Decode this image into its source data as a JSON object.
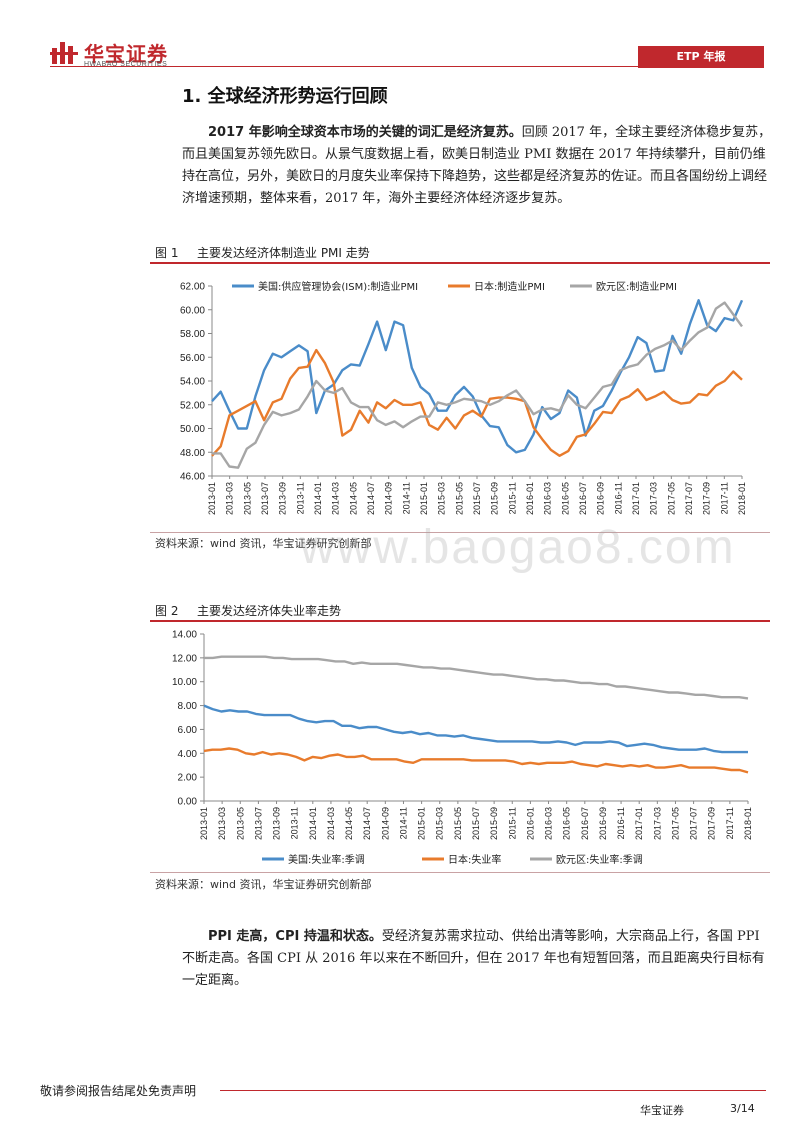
{
  "header": {
    "logo_cn": "华宝证券",
    "logo_en": "HWABAO SECURITIES",
    "report_type": "ETP 年报"
  },
  "section": {
    "title": "1. 全球经济形势运行回顾"
  },
  "paragraph1": {
    "lead": "2017 年影响全球资本市场的关键的词汇是经济复苏。",
    "body": "回顾 2017 年，全球主要经济体稳步复苏，而且美国复苏领先欧日。从景气度数据上看，欧美日制造业 PMI 数据在 2017 年持续攀升，目前仍维持在高位，另外，美欧日的月度失业率保持下降趋势，这些都是经济复苏的佐证。而且各国纷纷上调经济增速预期，整体来看，2017 年，海外主要经济体经济逐步复苏。"
  },
  "figure1": {
    "number": "图 1",
    "title": "主要发达经济体制造业 PMI 走势",
    "source": "资料来源：wind 资讯，华宝证券研究创新部"
  },
  "figure2": {
    "number": "图 2",
    "title": "主要发达经济体失业率走势",
    "source": "资料来源：wind 资讯，华宝证券研究创新部"
  },
  "paragraph2": {
    "lead": "PPI 走高，CPI 持温和状态。",
    "body": "受经济复苏需求拉动、供给出清等影响，大宗商品上行，各国 PPI 不断走高。各国 CPI 从 2016 年以来在不断回升，但在 2017 年也有短暂回落，而且距离央行目标有一定距离。"
  },
  "watermark": "www.baogao8.com",
  "footer": {
    "disclaimer": "敬请参阅报告结尾处免责声明",
    "company": "华宝证券",
    "page": "3/14"
  },
  "colors": {
    "brand_red": "#c0282d",
    "us": "#4a8cc9",
    "jp": "#e87b2c",
    "eu": "#a6a6a6"
  },
  "chart_data": [
    {
      "type": "line",
      "legend_position": "top",
      "ylim": [
        46,
        62
      ],
      "yticks": [
        "46.00",
        "48.00",
        "50.00",
        "52.00",
        "54.00",
        "56.00",
        "58.00",
        "60.00",
        "62.00"
      ],
      "xticks": [
        "2013-01",
        "2013-03",
        "2013-05",
        "2013-07",
        "2013-09",
        "2013-11",
        "2014-01",
        "2014-03",
        "2014-05",
        "2014-07",
        "2014-09",
        "2014-11",
        "2015-01",
        "2015-03",
        "2015-05",
        "2015-07",
        "2015-09",
        "2015-11",
        "2016-01",
        "2016-03",
        "2016-05",
        "2016-07",
        "2016-09",
        "2016-11",
        "2017-01",
        "2017-03",
        "2017-05",
        "2017-07",
        "2017-09",
        "2017-11",
        "2018-01"
      ],
      "series": [
        {
          "name": "美国:供应管理协会(ISM):制造业PMI",
          "color": "#4a8cc9",
          "values": [
            52.3,
            53.1,
            51.5,
            50.0,
            50.0,
            52.7,
            54.9,
            56.3,
            56.0,
            56.5,
            57.0,
            56.5,
            51.3,
            53.2,
            53.7,
            54.9,
            55.4,
            55.3,
            57.1,
            59.0,
            56.6,
            59.0,
            58.7,
            55.1,
            53.5,
            52.9,
            51.5,
            51.5,
            52.8,
            53.5,
            52.7,
            51.1,
            50.2,
            50.1,
            48.6,
            48.0,
            48.2,
            49.5,
            51.8,
            50.8,
            51.3,
            53.2,
            52.6,
            49.4,
            51.5,
            51.9,
            53.2,
            54.7,
            56.0,
            57.7,
            57.2,
            54.8,
            54.9,
            57.8,
            56.3,
            58.8,
            60.8,
            58.7,
            58.2,
            59.3,
            59.1,
            60.8
          ]
        },
        {
          "name": "日本:制造业PMI",
          "color": "#e87b2c",
          "values": [
            47.7,
            48.5,
            51.1,
            51.5,
            51.9,
            52.3,
            50.7,
            52.2,
            52.5,
            54.2,
            55.1,
            55.2,
            56.6,
            55.5,
            53.9,
            49.4,
            49.9,
            51.5,
            50.5,
            52.2,
            51.7,
            52.4,
            52.0,
            52.0,
            52.2,
            50.3,
            49.9,
            50.9,
            50.0,
            51.1,
            51.5,
            51.0,
            52.5,
            52.6,
            52.6,
            52.5,
            52.3,
            50.1,
            49.1,
            48.2,
            47.7,
            48.1,
            49.3,
            49.5,
            50.4,
            51.4,
            51.3,
            52.4,
            52.7,
            53.3,
            52.4,
            52.7,
            53.1,
            52.4,
            52.1,
            52.2,
            52.9,
            52.8,
            53.6,
            54.0,
            54.8,
            54.1
          ]
        },
        {
          "name": "欧元区:制造业PMI",
          "color": "#a6a6a6",
          "values": [
            47.9,
            47.9,
            46.8,
            46.7,
            48.3,
            48.8,
            50.3,
            51.4,
            51.1,
            51.3,
            51.6,
            52.7,
            54.0,
            53.2,
            53.0,
            53.4,
            52.2,
            51.8,
            51.8,
            50.7,
            50.3,
            50.6,
            50.1,
            50.6,
            51.0,
            51.0,
            52.2,
            52.0,
            52.2,
            52.5,
            52.4,
            52.3,
            52.0,
            52.3,
            52.8,
            53.2,
            52.3,
            51.2,
            51.6,
            51.7,
            51.5,
            52.8,
            52.0,
            51.7,
            52.6,
            53.5,
            53.7,
            54.9,
            55.2,
            55.4,
            56.2,
            56.7,
            57.0,
            57.4,
            56.6,
            57.4,
            58.1,
            58.5,
            60.1,
            60.6,
            59.6,
            58.6
          ]
        }
      ]
    },
    {
      "type": "line",
      "legend_position": "bottom",
      "ylim": [
        0,
        14
      ],
      "yticks": [
        "0.00",
        "2.00",
        "4.00",
        "6.00",
        "8.00",
        "10.00",
        "12.00",
        "14.00"
      ],
      "xticks": [
        "2013-01",
        "2013-03",
        "2013-05",
        "2013-07",
        "2013-09",
        "2013-11",
        "2014-01",
        "2014-03",
        "2014-05",
        "2014-07",
        "2014-09",
        "2014-11",
        "2015-01",
        "2015-03",
        "2015-05",
        "2015-07",
        "2015-09",
        "2015-11",
        "2016-01",
        "2016-03",
        "2016-05",
        "2016-07",
        "2016-09",
        "2016-11",
        "2017-01",
        "2017-03",
        "2017-05",
        "2017-07",
        "2017-09",
        "2017-11",
        "2018-01"
      ],
      "series": [
        {
          "name": "美国:失业率:季调",
          "color": "#4a8cc9",
          "values": [
            8.0,
            7.7,
            7.5,
            7.6,
            7.5,
            7.5,
            7.3,
            7.2,
            7.2,
            7.2,
            7.2,
            6.9,
            6.7,
            6.6,
            6.7,
            6.7,
            6.3,
            6.3,
            6.1,
            6.2,
            6.2,
            6.0,
            5.8,
            5.7,
            5.8,
            5.6,
            5.7,
            5.5,
            5.5,
            5.4,
            5.5,
            5.3,
            5.2,
            5.1,
            5.0,
            5.0,
            5.0,
            5.0,
            5.0,
            4.9,
            4.9,
            5.0,
            4.9,
            4.7,
            4.9,
            4.9,
            4.9,
            5.0,
            4.9,
            4.6,
            4.7,
            4.8,
            4.7,
            4.5,
            4.4,
            4.3,
            4.3,
            4.3,
            4.4,
            4.2,
            4.1,
            4.1,
            4.1,
            4.1
          ]
        },
        {
          "name": "日本:失业率",
          "color": "#e87b2c",
          "values": [
            4.2,
            4.3,
            4.3,
            4.4,
            4.3,
            4.0,
            3.9,
            4.1,
            3.9,
            4.0,
            3.9,
            3.7,
            3.4,
            3.7,
            3.6,
            3.8,
            3.9,
            3.7,
            3.7,
            3.8,
            3.5,
            3.5,
            3.5,
            3.5,
            3.3,
            3.2,
            3.5,
            3.5,
            3.5,
            3.5,
            3.5,
            3.5,
            3.4,
            3.4,
            3.4,
            3.4,
            3.4,
            3.3,
            3.1,
            3.2,
            3.1,
            3.2,
            3.2,
            3.2,
            3.3,
            3.1,
            3.0,
            2.9,
            3.1,
            3.0,
            2.9,
            3.0,
            2.9,
            3.0,
            2.8,
            2.8,
            2.9,
            3.0,
            2.8,
            2.8,
            2.8,
            2.8,
            2.7,
            2.6,
            2.6,
            2.4
          ]
        },
        {
          "name": "欧元区:失业率:季调",
          "color": "#a6a6a6",
          "values": [
            12.0,
            12.0,
            12.1,
            12.1,
            12.1,
            12.1,
            12.1,
            12.1,
            12.0,
            12.0,
            11.9,
            11.9,
            11.9,
            11.9,
            11.8,
            11.7,
            11.7,
            11.5,
            11.6,
            11.5,
            11.5,
            11.5,
            11.5,
            11.4,
            11.3,
            11.2,
            11.2,
            11.1,
            11.1,
            11.0,
            10.9,
            10.8,
            10.7,
            10.6,
            10.6,
            10.5,
            10.4,
            10.3,
            10.2,
            10.2,
            10.1,
            10.1,
            10.0,
            9.9,
            9.9,
            9.8,
            9.8,
            9.6,
            9.6,
            9.5,
            9.4,
            9.3,
            9.2,
            9.1,
            9.1,
            9.0,
            8.9,
            8.9,
            8.8,
            8.7,
            8.7,
            8.7,
            8.6
          ]
        }
      ]
    }
  ]
}
